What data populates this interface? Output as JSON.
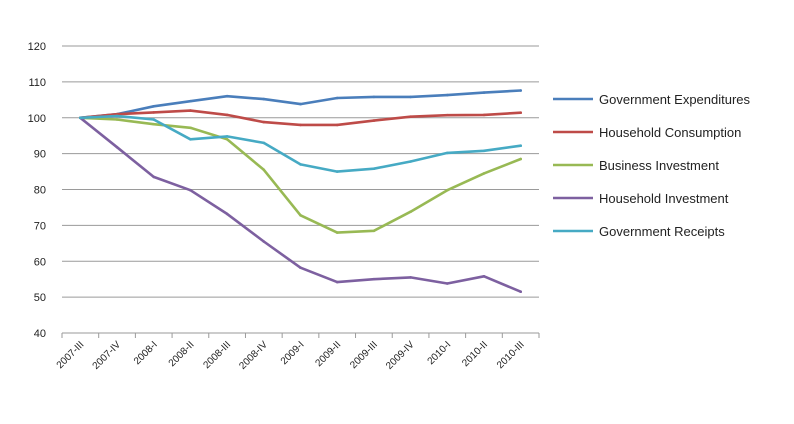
{
  "chart_data": {
    "type": "line",
    "title": "",
    "xlabel": "",
    "ylabel": "",
    "ylim": [
      40,
      120
    ],
    "yticks": [
      40,
      50,
      60,
      70,
      80,
      90,
      100,
      110,
      120
    ],
    "grid": "horizontal",
    "legend_position": "right",
    "categories": [
      "2007-III",
      "2007-IV",
      "2008-I",
      "2008-II",
      "2008-III",
      "2008-IV",
      "2009-I",
      "2009-II",
      "2009-III",
      "2009-IV",
      "2010-I",
      "2010-II",
      "2010-III"
    ],
    "series": [
      {
        "name": "Government Expenditures",
        "color": "#4a7ebb",
        "values": [
          100,
          101,
          103.2,
          104.6,
          106,
          105.2,
          103.8,
          105.5,
          105.8,
          105.8,
          106.3,
          107,
          107.6
        ]
      },
      {
        "name": "Household Consumption",
        "color": "#be4b48",
        "values": [
          100,
          101,
          101.5,
          102,
          100.8,
          98.8,
          98,
          98,
          99.2,
          100.3,
          100.7,
          100.8,
          101.4
        ]
      },
      {
        "name": "Business Investment",
        "color": "#98b954",
        "values": [
          100,
          99.5,
          98.2,
          97.2,
          94,
          85.5,
          72.8,
          68,
          68.5,
          73.8,
          79.8,
          84.5,
          88.5
        ]
      },
      {
        "name": "Household Investment",
        "color": "#7d60a0",
        "values": [
          100,
          91.8,
          83.5,
          79.8,
          73.2,
          65.5,
          58.2,
          54.2,
          55,
          55.5,
          53.8,
          55.8,
          51.5
        ]
      },
      {
        "name": "Government Receipts",
        "color": "#46aac4",
        "values": [
          100,
          100.5,
          99.5,
          94,
          94.8,
          93,
          87,
          85,
          85.8,
          87.8,
          90.2,
          90.8,
          92.2
        ]
      }
    ]
  }
}
